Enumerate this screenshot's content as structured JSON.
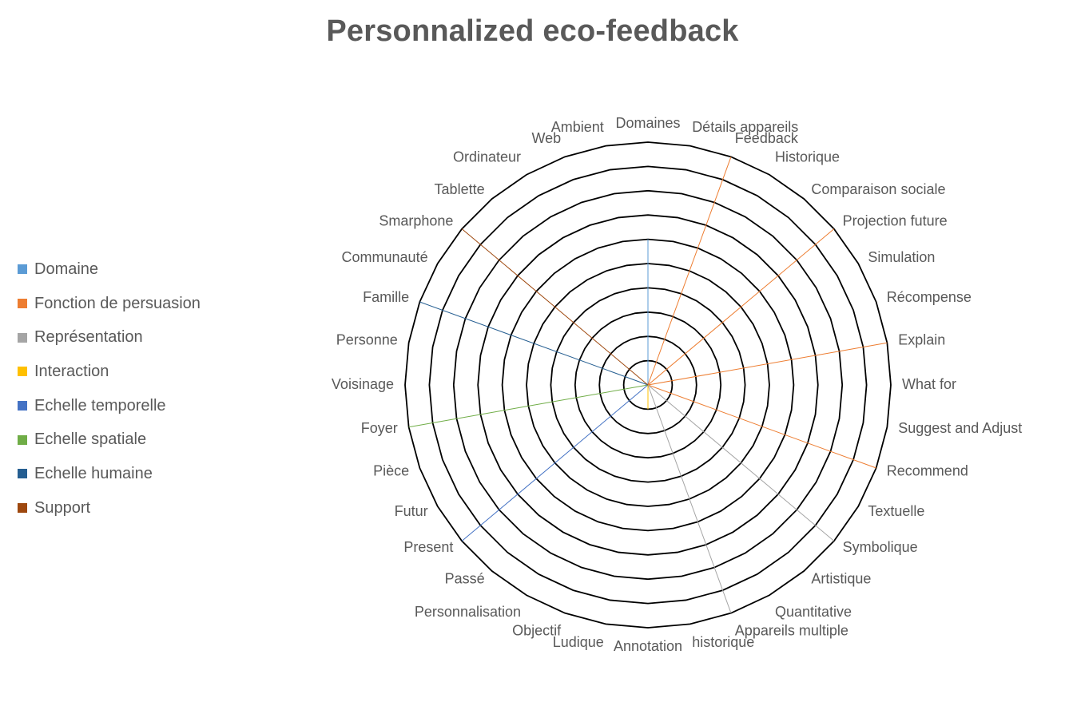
{
  "chart_data": {
    "type": "radar",
    "subtype": "filled",
    "title": "Personnalized eco-feedback",
    "legend_position": "left",
    "radial_range": [
      0,
      10
    ],
    "grid": true,
    "categories": [
      "Domaines",
      "Détails appareils",
      "Feedback",
      "Historique",
      "Comparaison sociale",
      "Projection future",
      "Simulation",
      "Récompense",
      "Explain",
      "What for",
      "Suggest and Adjust",
      "Recommend",
      "Textuelle",
      "Symbolique",
      "Artistique",
      "Quantitative",
      "Appareils multiple",
      "historique",
      "Annotation",
      "Ludique",
      "Objectif",
      "Personnalisation",
      "Passé",
      "Present",
      "Futur",
      "Pièce",
      "Foyer",
      "Voisinage",
      "Personne",
      "Famille",
      "Communauté",
      "Smarphone",
      "Tablette",
      "Ordinateur",
      "Web",
      "Ambient"
    ],
    "series": [
      {
        "name": "Domaine",
        "color": "#5B9BD5",
        "values": [
          6,
          0,
          0,
          0,
          0,
          0,
          0,
          0,
          0,
          0,
          0,
          0,
          0,
          0,
          0,
          0,
          0,
          0,
          0,
          0,
          0,
          0,
          0,
          0,
          0,
          0,
          0,
          0,
          0,
          0,
          0,
          0,
          0,
          0,
          0,
          0
        ]
      },
      {
        "name": "Fonction de persuasion",
        "color": "#ED7D31",
        "values": [
          0,
          0,
          10,
          0,
          0,
          10,
          0,
          0,
          10,
          0,
          0,
          10,
          0,
          0,
          0,
          0,
          0,
          0,
          0,
          0,
          0,
          0,
          0,
          0,
          0,
          0,
          0,
          0,
          0,
          0,
          0,
          0,
          0,
          0,
          0,
          0
        ]
      },
      {
        "name": "Représentation",
        "color": "#A5A5A5",
        "values": [
          0,
          0,
          0,
          0,
          0,
          0,
          0,
          0,
          0,
          0,
          0,
          0,
          0,
          10,
          0,
          0,
          10,
          0,
          0,
          0,
          0,
          0,
          0,
          0,
          0,
          0,
          0,
          0,
          0,
          0,
          0,
          0,
          0,
          0,
          0,
          0
        ]
      },
      {
        "name": "Interaction",
        "color": "#FFC000",
        "values": [
          0,
          0,
          0,
          0,
          0,
          0,
          0,
          0,
          0,
          0,
          0,
          0,
          0,
          0,
          0,
          0,
          0,
          0,
          1,
          0,
          0,
          0,
          0,
          0,
          0,
          0,
          0,
          0,
          0,
          0,
          0,
          0,
          0,
          0,
          0,
          0
        ]
      },
      {
        "name": "Echelle temporelle",
        "color": "#4472C4",
        "values": [
          0,
          0,
          0,
          0,
          0,
          0,
          0,
          0,
          0,
          0,
          0,
          0,
          0,
          0,
          0,
          0,
          0,
          0,
          0,
          0,
          0,
          0,
          0,
          10,
          0,
          0,
          0,
          0,
          0,
          0,
          0,
          0,
          0,
          0,
          0,
          0
        ]
      },
      {
        "name": "Echelle spatiale",
        "color": "#70AD47",
        "values": [
          0,
          0,
          0,
          0,
          0,
          0,
          0,
          0,
          0,
          0,
          0,
          0,
          0,
          0,
          0,
          0,
          0,
          0,
          0,
          0,
          0,
          0,
          0,
          0,
          0,
          0,
          10,
          0,
          0,
          0,
          0,
          0,
          0,
          0,
          0,
          0
        ]
      },
      {
        "name": "Echelle humaine",
        "color": "#255E91",
        "values": [
          0,
          0,
          0,
          0,
          0,
          0,
          0,
          0,
          0,
          0,
          0,
          0,
          0,
          0,
          0,
          0,
          0,
          0,
          0,
          0,
          0,
          0,
          0,
          0,
          0,
          0,
          0,
          0,
          0,
          10,
          0,
          0,
          0,
          0,
          0,
          0
        ]
      },
      {
        "name": "Support",
        "color": "#9E480E",
        "values": [
          0,
          0,
          0,
          0,
          0,
          0,
          0,
          0,
          0,
          0,
          0,
          0,
          0,
          0,
          0,
          0,
          0,
          0,
          0,
          0,
          0,
          0,
          0,
          0,
          0,
          0,
          0,
          0,
          0,
          0,
          0,
          10,
          0,
          0,
          0,
          0
        ]
      }
    ]
  }
}
